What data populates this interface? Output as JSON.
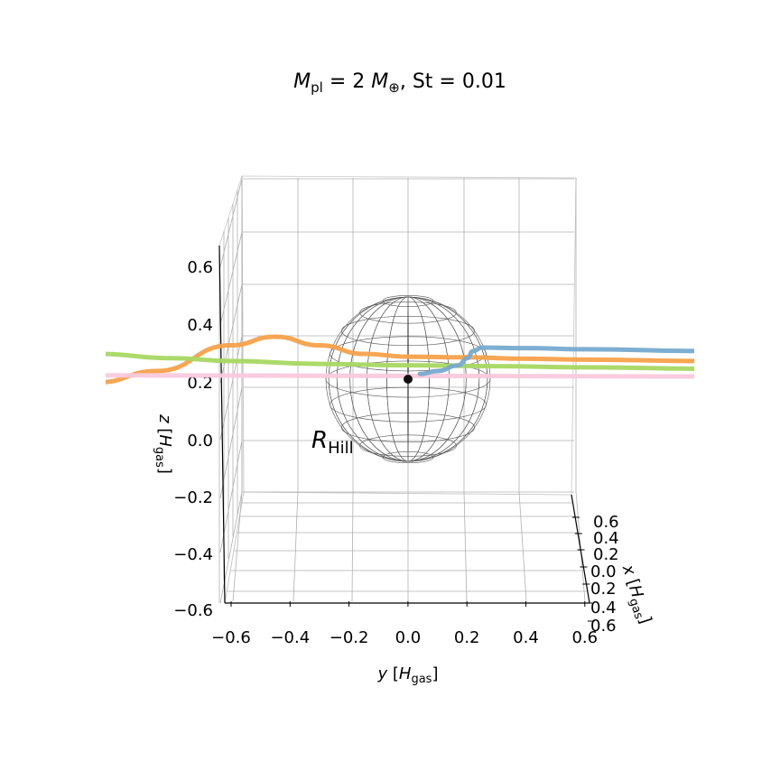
{
  "chart_data": {
    "type": "line3d",
    "title": "M_pl = 2 M_⊕,  St = 0.01",
    "title_parts": {
      "m": "M",
      "m_sub": "pl",
      "eq1": " = 2 ",
      "m2": "M",
      "m2_sub": "⊕",
      "sep": ",  St = 0.01"
    },
    "xlabel": "y [H_gas]",
    "xlabel_parts": {
      "var": "y",
      "open": " [",
      "h": "H",
      "h_sub": "gas",
      "close": "]"
    },
    "ylabel": "z [H_gas]",
    "ylabel_parts": {
      "var": "z",
      "open": " [",
      "h": "H",
      "h_sub": "gas",
      "close": "]"
    },
    "depthlabel": "x [H_gas]",
    "depthlabel_parts": {
      "var": "x",
      "open": " [",
      "h": "H",
      "h_sub": "gas",
      "close": "]"
    },
    "y_ticks": [
      "−0.6",
      "−0.4",
      "−0.2",
      "0.0",
      "0.2",
      "0.4",
      "0.6"
    ],
    "y_tick_values": [
      -0.6,
      -0.4,
      -0.2,
      0.0,
      0.2,
      0.4,
      0.6
    ],
    "z_ticks": [
      "−0.6",
      "−0.4",
      "−0.2",
      "0.0",
      "0.2",
      "0.4",
      "0.6"
    ],
    "z_tick_values": [
      -0.6,
      -0.4,
      -0.2,
      0.0,
      0.2,
      0.4,
      0.6
    ],
    "x_ticks": [
      "0.6",
      "0.4",
      "0.2",
      "0.0",
      "0.2",
      "0.4",
      "0.6"
    ],
    "ylim": [
      -0.6,
      0.6
    ],
    "zlim": [
      -0.6,
      0.6
    ],
    "xlim": [
      -0.6,
      0.6
    ],
    "grid": true,
    "hill_label": "R_Hill",
    "hill_label_parts": {
      "r": "R",
      "sub": "Hill"
    },
    "hill_radius": 0.28,
    "planet_position": {
      "y": 0.0,
      "z": 0.2
    },
    "series": [
      {
        "color": "#f7a14a",
        "points": [
          [
            -1.05,
            0.2
          ],
          [
            -0.85,
            0.24
          ],
          [
            -0.6,
            0.33
          ],
          [
            -0.45,
            0.36
          ],
          [
            -0.3,
            0.33
          ],
          [
            -0.15,
            0.3
          ],
          [
            0.0,
            0.29
          ],
          [
            0.2,
            0.288
          ],
          [
            0.4,
            0.283
          ],
          [
            0.6,
            0.28
          ],
          [
            1.0,
            0.275
          ]
        ]
      },
      {
        "color": "#a8d862",
        "points": [
          [
            -1.05,
            0.3
          ],
          [
            -0.8,
            0.285
          ],
          [
            -0.6,
            0.275
          ],
          [
            -0.3,
            0.265
          ],
          [
            0.0,
            0.26
          ],
          [
            0.3,
            0.257
          ],
          [
            0.6,
            0.253
          ],
          [
            1.0,
            0.248
          ]
        ]
      },
      {
        "color": "#f9c9dc",
        "points": [
          [
            -1.05,
            0.225
          ],
          [
            -0.5,
            0.224
          ],
          [
            0.0,
            0.223
          ],
          [
            0.5,
            0.222
          ],
          [
            1.0,
            0.221
          ]
        ]
      },
      {
        "color": "#77aad0",
        "points": [
          [
            0.04,
            0.23
          ],
          [
            0.1,
            0.24
          ],
          [
            0.17,
            0.26
          ],
          [
            0.2,
            0.285
          ],
          [
            0.22,
            0.31
          ],
          [
            0.25,
            0.322
          ],
          [
            0.4,
            0.32
          ],
          [
            0.6,
            0.316
          ],
          [
            1.0,
            0.31
          ]
        ]
      }
    ]
  }
}
